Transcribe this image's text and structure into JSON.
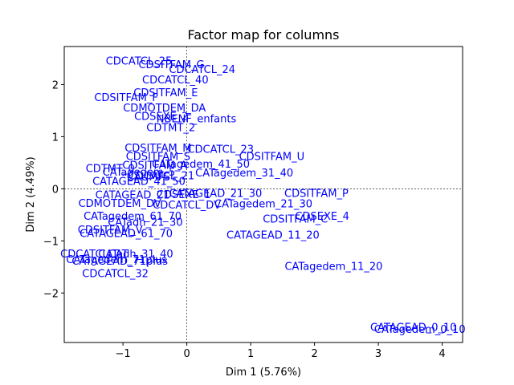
{
  "chart_data": {
    "type": "scatter",
    "title": "Factor map for columns",
    "xlabel": "Dim 1 (5.76%)",
    "ylabel": "Dim 2 (4.49%)",
    "xlim": [
      -1.92,
      4.32
    ],
    "ylim": [
      -2.95,
      2.73
    ],
    "xticks": [
      -1,
      0,
      1,
      2,
      3,
      4
    ],
    "yticks": [
      -2,
      -1,
      0,
      1,
      2
    ],
    "grid": false,
    "reference_lines": {
      "x": 0,
      "y": 0
    },
    "label_color": "#0000ff",
    "points": [
      {
        "label": "CDCATCL_25",
        "x": -0.75,
        "y": 2.46
      },
      {
        "label": "CDSITFAM_G",
        "x": -0.24,
        "y": 2.39
      },
      {
        "label": "CDCATCL_24",
        "x": 0.24,
        "y": 2.3
      },
      {
        "label": "CDCATCL_40",
        "x": -0.18,
        "y": 2.1
      },
      {
        "label": "CDSITFAM_E",
        "x": -0.33,
        "y": 1.85
      },
      {
        "label": "CDSITFAM_F",
        "x": -0.95,
        "y": 1.76
      },
      {
        "label": "CDMOTDEM_DA",
        "x": -0.35,
        "y": 1.56
      },
      {
        "label": "CDSEXE_2",
        "x": -0.4,
        "y": 1.4
      },
      {
        "label": "NBENF_enfants",
        "x": 0.15,
        "y": 1.35
      },
      {
        "label": "CDTMT_2",
        "x": -0.25,
        "y": 1.18
      },
      {
        "label": "CDSITFAM_M",
        "x": -0.45,
        "y": 0.79
      },
      {
        "label": "CDCATCL_23",
        "x": 0.53,
        "y": 0.77
      },
      {
        "label": "CDSITFAM_U",
        "x": 1.33,
        "y": 0.63
      },
      {
        "label": "CDSITFAM_S",
        "x": -0.45,
        "y": 0.63
      },
      {
        "label": "CATagedem_41_50",
        "x": 0.22,
        "y": 0.48
      },
      {
        "label": "CDSITFAM_A",
        "x": -0.5,
        "y": 0.46
      },
      {
        "label": "CDTMT_0",
        "x": -1.2,
        "y": 0.4
      },
      {
        "label": "CATagedem_31_40",
        "x": 0.9,
        "y": 0.31
      },
      {
        "label": "CATagedem_5",
        "x": -0.75,
        "y": 0.33
      },
      {
        "label": "CDCATCL_21",
        "x": -0.4,
        "y": 0.26
      },
      {
        "label": "CAUMFS",
        "x": -0.6,
        "y": 0.24
      },
      {
        "label": "CATAGEAD_41_50",
        "x": -0.75,
        "y": 0.15
      },
      {
        "label": "CDSITFAM_P",
        "x": 2.03,
        "y": -0.08
      },
      {
        "label": "CATAGEAD_21_30",
        "x": 0.45,
        "y": -0.08
      },
      {
        "label": "CATAGEAD_21",
        "x": -0.85,
        "y": -0.11
      },
      {
        "label": "CDSEXE_1",
        "x": -0.05,
        "y": -0.1
      },
      {
        "label": "CDMOTDEM_DV",
        "x": -1.05,
        "y": -0.27
      },
      {
        "label": "CDCATCL_DV",
        "x": 0.0,
        "y": -0.3
      },
      {
        "label": "CATagedem_21_30",
        "x": 1.2,
        "y": -0.28
      },
      {
        "label": "CDSEXE_4",
        "x": 2.12,
        "y": -0.52
      },
      {
        "label": "CDSITFAM_C",
        "x": 1.7,
        "y": -0.57
      },
      {
        "label": "CATagedem_61_70",
        "x": -0.85,
        "y": -0.52
      },
      {
        "label": "CATadh_21_30",
        "x": -0.65,
        "y": -0.63
      },
      {
        "label": "CDSITFAM_V",
        "x": -1.2,
        "y": -0.78
      },
      {
        "label": "CATAGEAD_61_70",
        "x": -0.95,
        "y": -0.85
      },
      {
        "label": "CATAGEAD_11_20",
        "x": 1.35,
        "y": -0.88
      },
      {
        "label": "CDCATCLCAT",
        "x": -1.45,
        "y": -1.24
      },
      {
        "label": "CATadh_31_40",
        "x": -0.8,
        "y": -1.24
      },
      {
        "label": "CATagedem_71plus",
        "x": -1.1,
        "y": -1.35
      },
      {
        "label": "CATAGEAD_71plus",
        "x": -1.05,
        "y": -1.38
      },
      {
        "label": "CATagedem_11_20",
        "x": 2.3,
        "y": -1.48
      },
      {
        "label": "CDCATCL_32",
        "x": -1.12,
        "y": -1.62
      },
      {
        "label": "CATAGEAD_0_10",
        "x": 3.55,
        "y": -2.65
      },
      {
        "label": "CATagedem_0_10",
        "x": 3.65,
        "y": -2.69
      }
    ]
  }
}
